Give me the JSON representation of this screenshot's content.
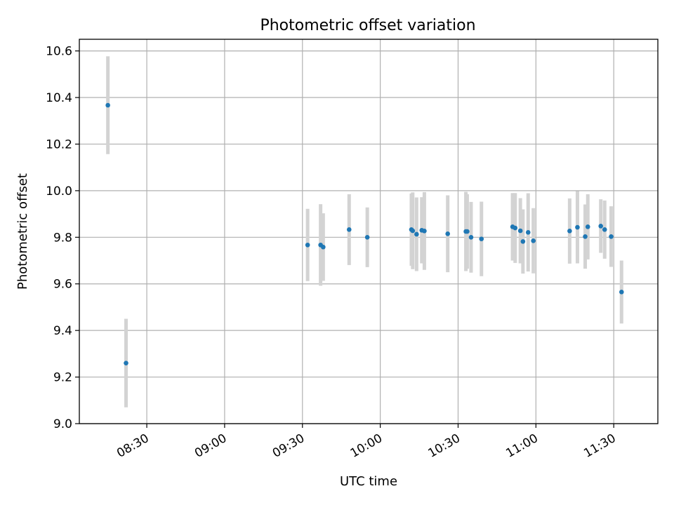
{
  "chart_data": {
    "type": "scatter",
    "title": "Photometric offset variation",
    "xlabel": "UTC time",
    "ylabel": "Photometric offset",
    "x_ticks": [
      "08:30",
      "09:00",
      "09:30",
      "10:00",
      "10:30",
      "11:00",
      "11:30"
    ],
    "y_ticks": [
      "9.0",
      "9.2",
      "9.4",
      "9.6",
      "9.8",
      "10.0",
      "10.2",
      "10.4",
      "10.6"
    ],
    "xlim": [
      "08:04",
      "11:47"
    ],
    "ylim": [
      9.0,
      10.65
    ],
    "grid": true,
    "colors": {
      "point": "#1f77b4",
      "errorbar": "#d3d3d3",
      "grid": "#b0b0b0"
    },
    "points": [
      {
        "x": "08:15",
        "y": 10.367,
        "err": 0.21
      },
      {
        "x": "08:22",
        "y": 9.26,
        "err": 0.19
      },
      {
        "x": "09:32",
        "y": 9.767,
        "err": 0.155
      },
      {
        "x": "09:37",
        "y": 9.767,
        "err": 0.175
      },
      {
        "x": "09:38",
        "y": 9.758,
        "err": 0.145
      },
      {
        "x": "09:48",
        "y": 9.833,
        "err": 0.152
      },
      {
        "x": "09:55",
        "y": 9.8,
        "err": 0.128
      },
      {
        "x": "10:12",
        "y": 9.833,
        "err": 0.155
      },
      {
        "x": "10:12.5",
        "y": 9.828,
        "err": 0.165
      },
      {
        "x": "10:14",
        "y": 9.813,
        "err": 0.158
      },
      {
        "x": "10:16",
        "y": 9.83,
        "err": 0.142
      },
      {
        "x": "10:17",
        "y": 9.827,
        "err": 0.167
      },
      {
        "x": "10:26",
        "y": 9.815,
        "err": 0.165
      },
      {
        "x": "10:33",
        "y": 9.825,
        "err": 0.17
      },
      {
        "x": "10:33.5",
        "y": 9.825,
        "err": 0.16
      },
      {
        "x": "10:35",
        "y": 9.8,
        "err": 0.152
      },
      {
        "x": "10:39",
        "y": 9.793,
        "err": 0.16
      },
      {
        "x": "10:51",
        "y": 9.845,
        "err": 0.145
      },
      {
        "x": "10:52",
        "y": 9.84,
        "err": 0.15
      },
      {
        "x": "10:54",
        "y": 9.828,
        "err": 0.14
      },
      {
        "x": "10:55",
        "y": 9.782,
        "err": 0.138
      },
      {
        "x": "10:57",
        "y": 9.821,
        "err": 0.168
      },
      {
        "x": "10:59",
        "y": 9.785,
        "err": 0.14
      },
      {
        "x": "11:13",
        "y": 9.827,
        "err": 0.14
      },
      {
        "x": "11:16",
        "y": 9.843,
        "err": 0.155
      },
      {
        "x": "11:19",
        "y": 9.803,
        "err": 0.138
      },
      {
        "x": "11:20",
        "y": 9.845,
        "err": 0.14
      },
      {
        "x": "11:25",
        "y": 9.848,
        "err": 0.115
      },
      {
        "x": "11:26.5",
        "y": 9.833,
        "err": 0.125
      },
      {
        "x": "11:29",
        "y": 9.803,
        "err": 0.13
      },
      {
        "x": "11:33",
        "y": 9.565,
        "err": 0.135
      }
    ]
  }
}
